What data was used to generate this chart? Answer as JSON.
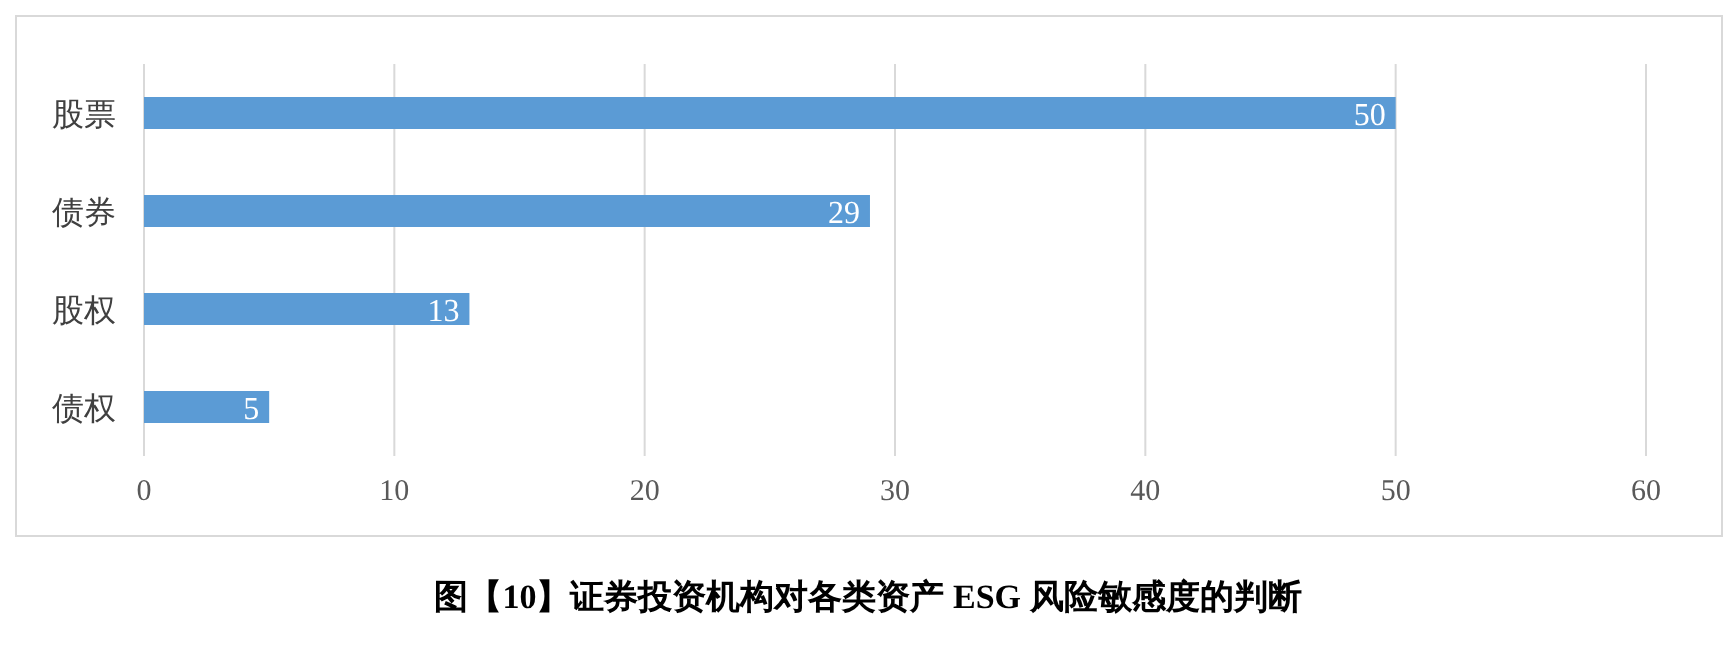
{
  "chart_data": {
    "type": "bar",
    "orientation": "horizontal",
    "title": "图【10】证券投资机构对各类资产 ESG 风险敏感度的判断",
    "categories": [
      "股票",
      "债券",
      "股权",
      "债权"
    ],
    "values": [
      50,
      29,
      13,
      5
    ],
    "color": "#5b9bd5",
    "xlim": [
      0,
      60
    ],
    "xticks": [
      0,
      10,
      20,
      30,
      40,
      50,
      60
    ],
    "grid": "x",
    "data_labels": true
  }
}
